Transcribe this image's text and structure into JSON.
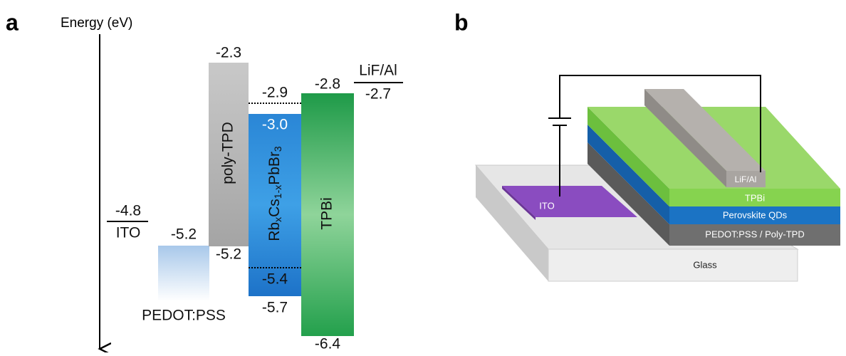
{
  "panel_a": {
    "label": "a",
    "axis_label": "Energy (eV)",
    "ito": {
      "level": "-4.8",
      "name": "ITO"
    },
    "pedot_pss": {
      "level": "-5.2",
      "name": "PEDOT:PSS"
    },
    "poly_tpd": {
      "top": "-2.3",
      "bottom": "-5.2",
      "name": "poly-TPD"
    },
    "perovskite": {
      "upper_dotted": "-2.9",
      "top": "-3.0",
      "lower_dotted": "-5.4",
      "bottom": "-5.7",
      "formula": [
        "Rb",
        "x",
        "Cs",
        "1-x",
        "PbBr",
        "3"
      ]
    },
    "tpbi": {
      "top": "-2.8",
      "bottom": "-6.4",
      "name": "TPBi"
    },
    "lif_al": {
      "name": "LiF/Al",
      "level": "-2.7"
    }
  },
  "panel_b": {
    "label": "b",
    "layers": {
      "lif_al": "LiF/Al",
      "tpbi": "TPBi",
      "perovskite": "Perovskite QDs",
      "hole_transport": "PEDOT:PSS / Poly-TPD",
      "ito": "ITO",
      "glass": "Glass"
    }
  }
}
